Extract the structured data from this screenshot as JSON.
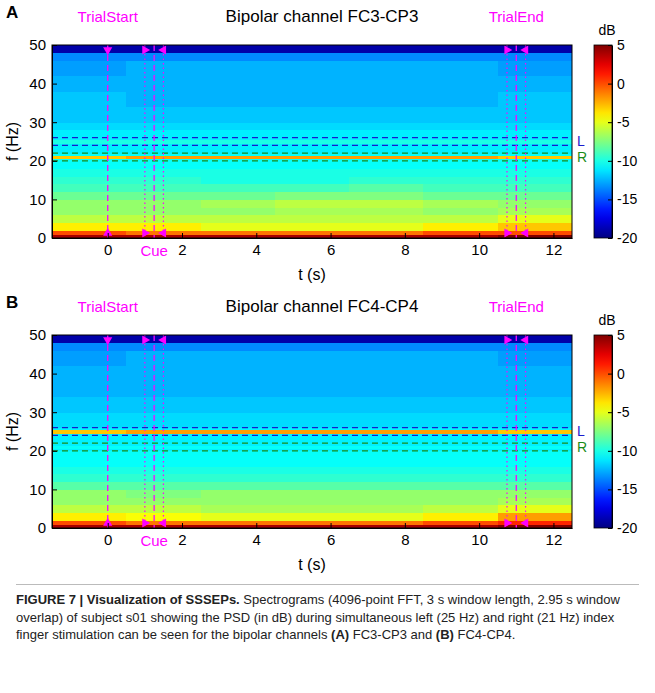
{
  "chart_data": [
    {
      "type": "heatmap",
      "panel": "A",
      "title": "Bipolar channel FC3-CP3",
      "x_label": "t (s)",
      "y_label": "f (Hz)",
      "xlim": [
        -1.5,
        12.5
      ],
      "ylim": [
        0,
        50
      ],
      "xticks": [
        0,
        2,
        4,
        6,
        8,
        10,
        12
      ],
      "yticks": [
        0,
        10,
        20,
        30,
        40,
        50
      ],
      "heatmap": {
        "x_bins": [
          -1.5,
          0.5,
          2.5,
          4.5,
          6.5,
          8.5,
          10.5,
          12.5
        ],
        "y_bins": [
          0,
          1,
          2,
          4,
          6,
          8,
          10,
          12,
          14,
          16,
          18,
          20,
          20.5,
          21.5,
          22,
          24,
          24.5,
          25.5,
          26,
          28,
          30,
          34,
          38,
          42,
          46,
          48,
          50
        ],
        "values": [
          [
            4,
            4,
            4,
            4,
            4,
            4,
            5
          ],
          [
            0,
            -1,
            -1,
            -1,
            -1,
            0,
            0
          ],
          [
            -4,
            -4,
            -5,
            -5,
            -5,
            -4,
            -3
          ],
          [
            -6,
            -6,
            -6,
            -6,
            -6,
            -6,
            -5
          ],
          [
            -7,
            -7,
            -7,
            -6.5,
            -6.5,
            -7,
            -6.5
          ],
          [
            -7,
            -7,
            -6.5,
            -6,
            -6,
            -6.5,
            -7
          ],
          [
            -8,
            -8,
            -8,
            -7.5,
            -7.5,
            -8,
            -8
          ],
          [
            -9,
            -9,
            -9,
            -9,
            -8.5,
            -9,
            -9
          ],
          [
            -9.5,
            -9.5,
            -10,
            -10,
            -9.5,
            -9.5,
            -9.5
          ],
          [
            -10,
            -10,
            -10,
            -10,
            -10,
            -10,
            -10
          ],
          [
            -10.5,
            -10.5,
            -10.5,
            -10.5,
            -10.5,
            -10.5,
            -10.5
          ],
          [
            -10.5,
            -10.5,
            -10.5,
            -10.5,
            -10.5,
            -10.5,
            -10.5
          ],
          [
            -3,
            -2,
            -2,
            -2,
            -2,
            -2,
            -3
          ],
          [
            -10.5,
            -10.5,
            -10.5,
            -10.5,
            -10.5,
            -10.5,
            -10.5
          ],
          [
            -11,
            -11,
            -11,
            -11,
            -11,
            -11,
            -11
          ],
          [
            -11,
            -11,
            -11,
            -11,
            -11,
            -11,
            -11
          ],
          [
            -10,
            -10,
            -10,
            -10,
            -10,
            -10,
            -10
          ],
          [
            -11,
            -11,
            -11,
            -11,
            -11,
            -11,
            -11
          ],
          [
            -11,
            -11,
            -11,
            -11,
            -11,
            -11,
            -11
          ],
          [
            -11.5,
            -11.5,
            -11.5,
            -11.5,
            -11.5,
            -11.5,
            -11.5
          ],
          [
            -12,
            -12,
            -12,
            -12,
            -12,
            -12,
            -12
          ],
          [
            -12,
            -12.5,
            -12.5,
            -12.5,
            -12.5,
            -12.5,
            -12
          ],
          [
            -12.5,
            -12.5,
            -12.5,
            -12.5,
            -12.5,
            -12.5,
            -12.5
          ],
          [
            -13,
            -12.5,
            -12.5,
            -12.5,
            -12.5,
            -12.5,
            -13
          ],
          [
            -13.5,
            -13.5,
            -13.5,
            -13.5,
            -13.5,
            -13.5,
            -13.5
          ],
          [
            -19,
            -19,
            -19,
            -19,
            -19,
            -19,
            -19
          ]
        ]
      },
      "colorbar": {
        "title": "dB",
        "range": [
          -20,
          5
        ],
        "ticks": [
          5,
          0,
          -5,
          -10,
          -15,
          -20
        ]
      },
      "events": [
        {
          "label": "TrialStart",
          "t": 0,
          "color": "#ff00ff"
        },
        {
          "label": "Cue",
          "t": 1.25,
          "range": [
            1,
            1.5
          ],
          "color": "#ff00ff"
        },
        {
          "label": "TrialEnd",
          "t": 11,
          "range": [
            10.75,
            11.25
          ],
          "color": "#ff00ff"
        }
      ],
      "bands": [
        {
          "label": "L",
          "range": [
            24,
            26
          ],
          "color": "#1a1acc"
        },
        {
          "label": "R",
          "range": [
            20,
            22
          ],
          "color": "#1a8c1a"
        }
      ]
    },
    {
      "type": "heatmap",
      "panel": "B",
      "title": "Bipolar channel FC4-CP4",
      "x_label": "t (s)",
      "y_label": "f (Hz)",
      "xlim": [
        -1.5,
        12.5
      ],
      "ylim": [
        0,
        50
      ],
      "xticks": [
        0,
        2,
        4,
        6,
        8,
        10,
        12
      ],
      "yticks": [
        0,
        10,
        20,
        30,
        40,
        50
      ],
      "heatmap": {
        "x_bins": [
          -1.5,
          0.5,
          2.5,
          4.5,
          6.5,
          8.5,
          10.5,
          12.5
        ],
        "y_bins": [
          0,
          1,
          2,
          4,
          6,
          8,
          10,
          12,
          14,
          16,
          18,
          20,
          20.5,
          21.5,
          22,
          24,
          24.5,
          25.5,
          26,
          28,
          30,
          34,
          38,
          42,
          46,
          48,
          50
        ],
        "values": [
          [
            4,
            4,
            4,
            4,
            4,
            4,
            5
          ],
          [
            0,
            -1,
            -1,
            -1,
            -1,
            0,
            1
          ],
          [
            -4,
            -4.5,
            -5,
            -5,
            -5,
            -4,
            -2
          ],
          [
            -6,
            -6,
            -6.5,
            -6.5,
            -6.5,
            -6,
            -5
          ],
          [
            -7,
            -7,
            -7,
            -7,
            -7,
            -7,
            -6.5
          ],
          [
            -7,
            -7.5,
            -7,
            -7,
            -7,
            -7,
            -7
          ],
          [
            -8.5,
            -8.5,
            -8.5,
            -8.5,
            -8.5,
            -8.5,
            -8.5
          ],
          [
            -9.5,
            -9.5,
            -9.5,
            -9.5,
            -9.5,
            -9.5,
            -9.5
          ],
          [
            -10,
            -10,
            -10,
            -10,
            -10,
            -10,
            -10
          ],
          [
            -10.5,
            -10.5,
            -10.5,
            -10.5,
            -10.5,
            -10.5,
            -10.5
          ],
          [
            -10.5,
            -10.5,
            -10.5,
            -10.5,
            -10.5,
            -10.5,
            -10.5
          ],
          [
            -11,
            -11,
            -11,
            -11,
            -11,
            -11,
            -11
          ],
          [
            -10.5,
            -10.5,
            -10.5,
            -10.5,
            -10.5,
            -10.5,
            -10.5
          ],
          [
            -11,
            -11,
            -11,
            -11,
            -11,
            -11,
            -11
          ],
          [
            -11,
            -11,
            -11,
            -11,
            -11,
            -11,
            -11
          ],
          [
            -11,
            -11,
            -11,
            -11,
            -11,
            -11,
            -11
          ],
          [
            -3,
            -2,
            -2,
            -2,
            -2,
            -2,
            -3
          ],
          [
            -11,
            -11,
            -11,
            -11,
            -11,
            -11,
            -11
          ],
          [
            -11.5,
            -11.5,
            -11.5,
            -11.5,
            -11.5,
            -11.5,
            -11.5
          ],
          [
            -11.5,
            -11.5,
            -11.5,
            -11.5,
            -11.5,
            -11.5,
            -11.5
          ],
          [
            -12,
            -12,
            -12,
            -12,
            -12,
            -12,
            -12
          ],
          [
            -12.5,
            -12.5,
            -12.5,
            -12.5,
            -12.5,
            -12.5,
            -12.5
          ],
          [
            -12.5,
            -12.5,
            -12.5,
            -12.5,
            -12.5,
            -12.5,
            -12.5
          ],
          [
            -13,
            -12.5,
            -12.5,
            -12.5,
            -12.5,
            -12.5,
            -13
          ],
          [
            -13.5,
            -13.5,
            -13.5,
            -13.5,
            -13.5,
            -13.5,
            -13.5
          ],
          [
            -19,
            -19,
            -19,
            -19,
            -19,
            -19,
            -19
          ]
        ]
      },
      "colorbar": {
        "title": "dB",
        "range": [
          -20,
          5
        ],
        "ticks": [
          5,
          0,
          -5,
          -10,
          -15,
          -20
        ]
      },
      "events": [
        {
          "label": "TrialStart",
          "t": 0,
          "color": "#ff00ff"
        },
        {
          "label": "Cue",
          "t": 1.25,
          "range": [
            1,
            1.5
          ],
          "color": "#ff00ff"
        },
        {
          "label": "TrialEnd",
          "t": 11,
          "range": [
            10.75,
            11.25
          ],
          "color": "#ff00ff"
        }
      ],
      "bands": [
        {
          "label": "L",
          "range": [
            24,
            26
          ],
          "color": "#1a1acc"
        },
        {
          "label": "R",
          "range": [
            20,
            22
          ],
          "color": "#1a8c1a"
        }
      ]
    }
  ],
  "caption": [
    "FIGURE 7 | Visualization of SSSEPs.",
    " Spectrograms (4096-point FFT, 3 s window length, 2.95 s window overlap) of subject s01 showing the PSD (in dB) during simultaneous left (25 Hz) and right (21 Hz) index finger stimulation can be seen for the bipolar channels ",
    "(A)",
    " FC3-CP3 and ",
    "(B)",
    " FC4-CP4."
  ]
}
